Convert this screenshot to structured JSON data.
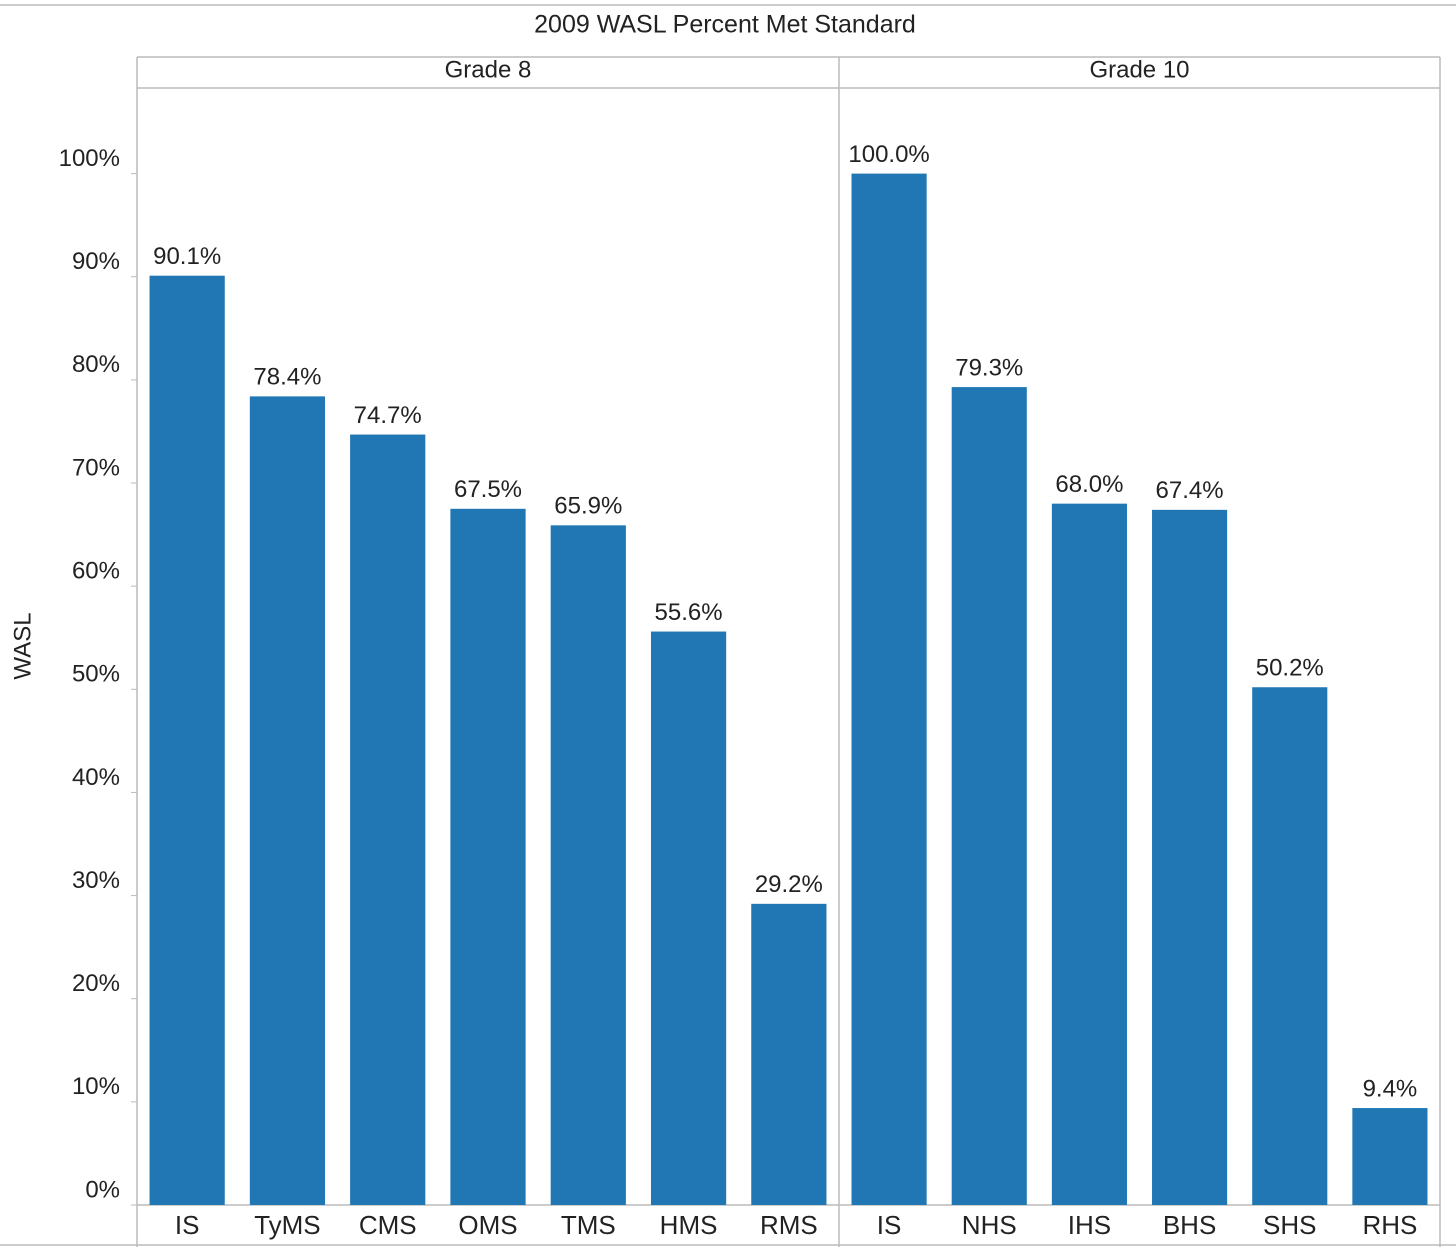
{
  "chart_data": {
    "type": "bar",
    "title": "2009 WASL Percent Met Standard",
    "y_label": "WASL",
    "color": "#2077b4",
    "ylim": [
      0,
      108.3
    ],
    "yticks": [
      {
        "value": 0,
        "label": "0%"
      },
      {
        "value": 10,
        "label": "10%"
      },
      {
        "value": 20,
        "label": "20%"
      },
      {
        "value": 30,
        "label": "30%"
      },
      {
        "value": 40,
        "label": "40%"
      },
      {
        "value": 50,
        "label": "50%"
      },
      {
        "value": 60,
        "label": "60%"
      },
      {
        "value": 70,
        "label": "70%"
      },
      {
        "value": 80,
        "label": "80%"
      },
      {
        "value": 90,
        "label": "90%"
      },
      {
        "value": 100,
        "label": "100%"
      }
    ],
    "panels": [
      {
        "name": "Grade 8",
        "categories": [
          "IS",
          "TyMS",
          "CMS",
          "OMS",
          "TMS",
          "HMS",
          "RMS"
        ],
        "values": [
          90.1,
          78.4,
          74.7,
          67.5,
          65.9,
          55.6,
          29.2
        ],
        "value_labels": [
          "90.1%",
          "78.4%",
          "74.7%",
          "67.5%",
          "65.9%",
          "55.6%",
          "29.2%"
        ]
      },
      {
        "name": "Grade 10",
        "categories": [
          "IS",
          "NHS",
          "IHS",
          "BHS",
          "SHS",
          "RHS"
        ],
        "values": [
          100.0,
          79.3,
          68.0,
          67.4,
          50.2,
          9.4
        ],
        "value_labels": [
          "100.0%",
          "79.3%",
          "68.0%",
          "67.4%",
          "50.2%",
          "9.4%"
        ]
      }
    ]
  }
}
